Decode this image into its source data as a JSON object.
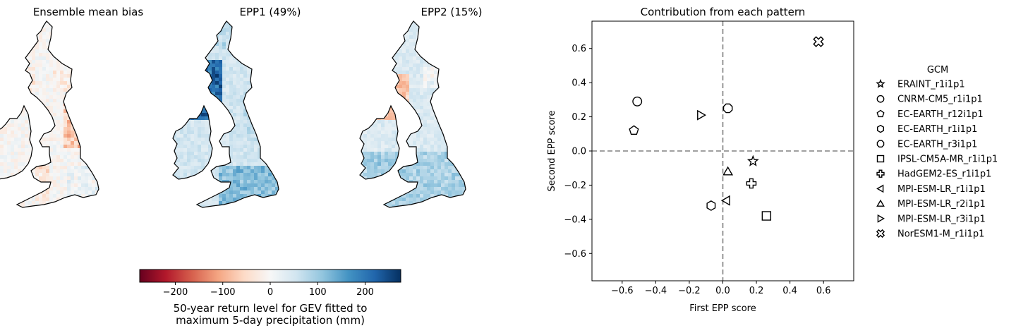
{
  "maps": {
    "panels": [
      {
        "title": "Ensemble mean bias",
        "field": "bias"
      },
      {
        "title": "EPP1 (49%)",
        "field": "epp1"
      },
      {
        "title": "EPP2 (15%)",
        "field": "epp2"
      }
    ],
    "colorbar": {
      "colormap": "RdBu",
      "range": [
        -275,
        275
      ],
      "ticks": [
        -200,
        -100,
        0,
        100,
        200
      ],
      "tick_labels": [
        "−200",
        "−100",
        "0",
        "100",
        "200"
      ],
      "label_line1": "50-year return level for GEV fitted to",
      "label_line2": "maximum 5-day precipitation (mm)"
    }
  },
  "chart_data": {
    "type": "scatter",
    "title": "Contribution from each pattern",
    "xlabel": "First EPP score",
    "ylabel": "Second EPP score",
    "xlim": [
      -0.78,
      0.78
    ],
    "ylim": [
      -0.76,
      0.76
    ],
    "xticks": [
      -0.6,
      -0.4,
      -0.2,
      0.0,
      0.2,
      0.4,
      0.6
    ],
    "xtick_labels": [
      "−0.6",
      "−0.4",
      "−0.2",
      "0.0",
      "0.2",
      "0.4",
      "0.6"
    ],
    "yticks": [
      -0.6,
      -0.4,
      -0.2,
      0.0,
      0.2,
      0.4,
      0.6
    ],
    "ytick_labels": [
      "−0.6",
      "−0.4",
      "−0.2",
      "0.0",
      "0.2",
      "0.4",
      "0.6"
    ],
    "reference_lines": {
      "x": 0,
      "y": 0,
      "style": "dashed",
      "color": "#808080"
    },
    "grid": false,
    "legend_title": "GCM",
    "legend_placement": "outside-right",
    "series": [
      {
        "name": "ERAINT_r1i1p1",
        "marker": "star",
        "x": 0.18,
        "y": -0.06
      },
      {
        "name": "CNRM-CM5_r1i1p1",
        "marker": "circle",
        "x": -0.51,
        "y": 0.29
      },
      {
        "name": "EC-EARTH_r12i1p1",
        "marker": "pentagon",
        "x": -0.53,
        "y": 0.12
      },
      {
        "name": "EC-EARTH_r1i1p1",
        "marker": "hexagon",
        "x": -0.07,
        "y": -0.32
      },
      {
        "name": "EC-EARTH_r3i1p1",
        "marker": "octagon",
        "x": 0.03,
        "y": 0.25
      },
      {
        "name": "IPSL-CM5A-MR_r1i1p1",
        "marker": "square",
        "x": 0.26,
        "y": -0.38
      },
      {
        "name": "HadGEM2-ES_r1i1p1",
        "marker": "plus",
        "x": 0.17,
        "y": -0.19
      },
      {
        "name": "MPI-ESM-LR_r1i1p1",
        "marker": "triangle-left",
        "x": 0.02,
        "y": -0.29
      },
      {
        "name": "MPI-ESM-LR_r2i1p1",
        "marker": "triangle-up",
        "x": 0.03,
        "y": -0.12
      },
      {
        "name": "MPI-ESM-LR_r3i1p1",
        "marker": "triangle-right",
        "x": -0.13,
        "y": 0.21
      },
      {
        "name": "NorESM1-M_r1i1p1",
        "marker": "x-filled",
        "x": 0.57,
        "y": 0.64
      }
    ]
  }
}
